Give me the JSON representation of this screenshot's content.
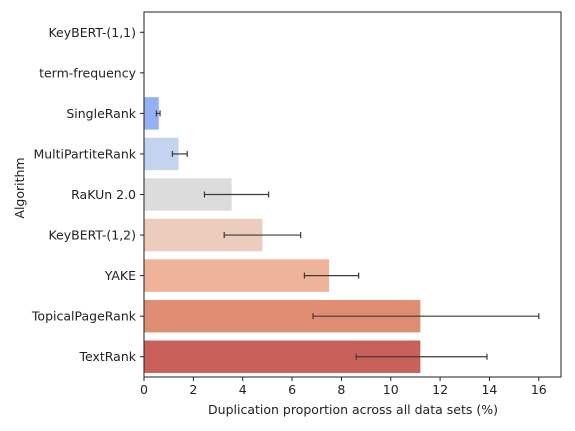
{
  "chart_data": {
    "type": "bar",
    "orientation": "horizontal",
    "title": "",
    "xlabel": "Duplication proportion across all data sets (%)",
    "ylabel": "Algorithm",
    "xlim": [
      0,
      16.9
    ],
    "xticks": [
      0,
      2,
      4,
      6,
      8,
      10,
      12,
      14,
      16
    ],
    "grid": false,
    "legend": "none",
    "categories": [
      "KeyBERT-(1,1)",
      "term-frequency",
      "SingleRank",
      "MultiPartiteRank",
      "RaKUn 2.0",
      "KeyBERT-(1,2)",
      "YAKE",
      "TopicalPageRank",
      "TextRank"
    ],
    "values": [
      0,
      0,
      0.6,
      1.4,
      3.55,
      4.8,
      7.5,
      11.2,
      11.2
    ],
    "error_low": [
      0,
      0,
      0.5,
      1.15,
      2.45,
      3.25,
      6.5,
      6.85,
      8.6
    ],
    "error_high": [
      0,
      0,
      0.65,
      1.75,
      5.05,
      6.35,
      8.7,
      16.0,
      13.9
    ],
    "colors": [
      "#4b63d4",
      "#6886e8",
      "#95b1f5",
      "#c3d3f0",
      "#dcdcdc",
      "#ecccbd",
      "#eeb398",
      "#e08e73",
      "#c9615a"
    ],
    "error_color": "#3a3a3a",
    "axis_color": "#222222"
  }
}
